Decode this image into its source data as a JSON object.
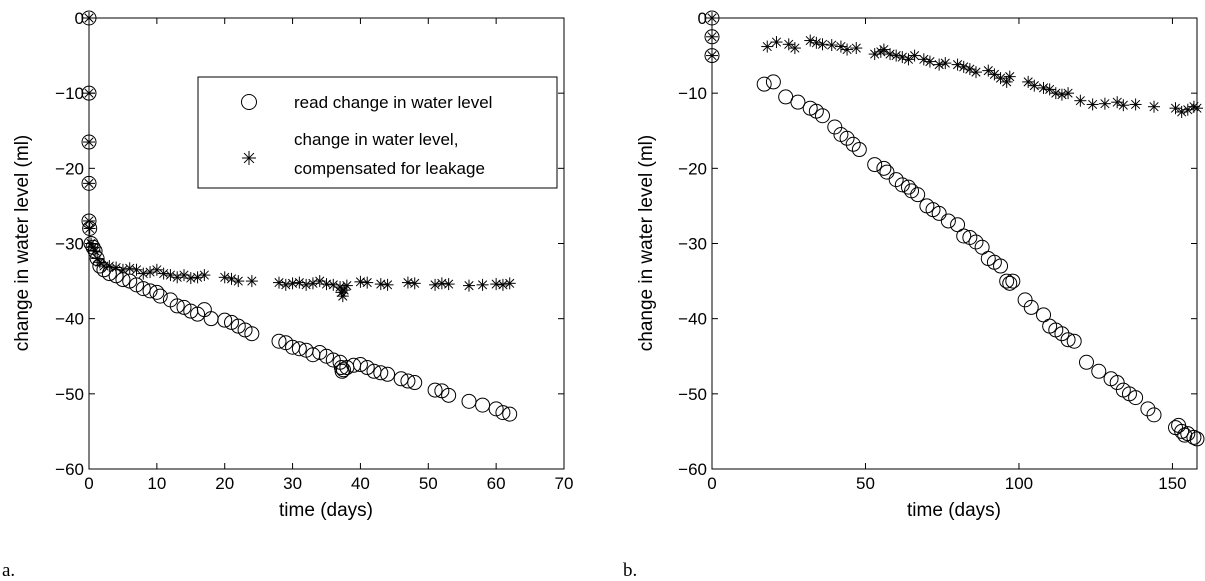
{
  "chart_data": [
    {
      "type": "scatter",
      "panel_label": "a.",
      "title": "",
      "xlabel": "time (days)",
      "ylabel": "change in water level (ml)",
      "xlim": [
        0,
        70
      ],
      "ylim": [
        -60,
        0
      ],
      "xticks": [
        0,
        10,
        20,
        30,
        40,
        50,
        60,
        70
      ],
      "yticks": [
        0,
        -10,
        -20,
        -30,
        -40,
        -50,
        -60
      ],
      "legend": {
        "placement": "top-right",
        "entries": [
          "read change in water level",
          "change in water level, compensated for leakage"
        ]
      },
      "series": [
        {
          "name": "read change in water level",
          "marker": "circle",
          "points": [
            [
              0,
              0
            ],
            [
              0,
              -10
            ],
            [
              0,
              -16.5
            ],
            [
              0,
              -22
            ],
            [
              0,
              -27
            ],
            [
              0.1,
              -28
            ],
            [
              0.3,
              -30
            ],
            [
              0.6,
              -30.5
            ],
            [
              0.9,
              -31
            ],
            [
              1.2,
              -32
            ],
            [
              1.6,
              -33
            ],
            [
              2.2,
              -33.5
            ],
            [
              3,
              -34
            ],
            [
              4,
              -34.3
            ],
            [
              5,
              -34.8
            ],
            [
              6,
              -35
            ],
            [
              7,
              -35.5
            ],
            [
              8,
              -36
            ],
            [
              9,
              -36.3
            ],
            [
              10,
              -36.5
            ],
            [
              10.5,
              -37
            ],
            [
              12,
              -37.5
            ],
            [
              13,
              -38.3
            ],
            [
              14,
              -38.5
            ],
            [
              15,
              -39
            ],
            [
              16,
              -39.4
            ],
            [
              17,
              -38.8
            ],
            [
              18,
              -40
            ],
            [
              20,
              -40.2
            ],
            [
              21,
              -40.5
            ],
            [
              22,
              -41
            ],
            [
              23,
              -41.5
            ],
            [
              24,
              -42
            ],
            [
              28,
              -43
            ],
            [
              29,
              -43.2
            ],
            [
              30,
              -43.8
            ],
            [
              31,
              -44
            ],
            [
              32,
              -44.2
            ],
            [
              33,
              -44.8
            ],
            [
              34,
              -44.5
            ],
            [
              35,
              -45
            ],
            [
              36,
              -45.5
            ],
            [
              37,
              -45.8
            ],
            [
              37.2,
              -46.5
            ],
            [
              37.3,
              -47
            ],
            [
              37.5,
              -46.8
            ],
            [
              38,
              -46.5
            ],
            [
              39,
              -46.2
            ],
            [
              40,
              -46.1
            ],
            [
              41,
              -46.5
            ],
            [
              42,
              -47
            ],
            [
              43,
              -47.2
            ],
            [
              44,
              -47.4
            ],
            [
              46,
              -48
            ],
            [
              47,
              -48.3
            ],
            [
              48,
              -48.5
            ],
            [
              51,
              -49.5
            ],
            [
              52,
              -49.6
            ],
            [
              53,
              -50.2
            ],
            [
              56,
              -51
            ],
            [
              58,
              -51.5
            ],
            [
              60,
              -52
            ],
            [
              61,
              -52.5
            ],
            [
              62,
              -52.7
            ]
          ]
        },
        {
          "name": "change in water level, compensated for leakage",
          "marker": "asterisk",
          "points": [
            [
              0,
              0
            ],
            [
              0,
              -10
            ],
            [
              0,
              -16.5
            ],
            [
              0,
              -22
            ],
            [
              0,
              -27
            ],
            [
              0.1,
              -28
            ],
            [
              0.3,
              -30
            ],
            [
              0.6,
              -30.5
            ],
            [
              0.9,
              -31
            ],
            [
              1.2,
              -32
            ],
            [
              1.6,
              -32.5
            ],
            [
              2.2,
              -33
            ],
            [
              3,
              -33
            ],
            [
              4,
              -33.2
            ],
            [
              5,
              -33.5
            ],
            [
              6,
              -33.3
            ],
            [
              7,
              -33.5
            ],
            [
              8,
              -34
            ],
            [
              9,
              -33.8
            ],
            [
              10,
              -33.5
            ],
            [
              11,
              -34
            ],
            [
              12,
              -34.2
            ],
            [
              13,
              -34.5
            ],
            [
              14,
              -34.2
            ],
            [
              15,
              -34.6
            ],
            [
              16,
              -34.5
            ],
            [
              17,
              -34.2
            ],
            [
              20,
              -34.5
            ],
            [
              21,
              -34.7
            ],
            [
              22,
              -35
            ],
            [
              24,
              -35
            ],
            [
              28,
              -35.2
            ],
            [
              29,
              -35.5
            ],
            [
              30,
              -35.3
            ],
            [
              31,
              -35.2
            ],
            [
              32,
              -35.5
            ],
            [
              33,
              -35.3
            ],
            [
              34,
              -35
            ],
            [
              35,
              -35.4
            ],
            [
              36,
              -35.5
            ],
            [
              37,
              -35.8
            ],
            [
              37.2,
              -36.5
            ],
            [
              37.4,
              -37
            ],
            [
              37.6,
              -36.2
            ],
            [
              38,
              -35.6
            ],
            [
              40,
              -35.1
            ],
            [
              41,
              -35.2
            ],
            [
              43,
              -35.4
            ],
            [
              44,
              -35.5
            ],
            [
              47,
              -35.2
            ],
            [
              48,
              -35.3
            ],
            [
              51,
              -35.5
            ],
            [
              52,
              -35.3
            ],
            [
              53,
              -35.4
            ],
            [
              56,
              -35.6
            ],
            [
              58,
              -35.5
            ],
            [
              60,
              -35.4
            ],
            [
              61,
              -35.5
            ],
            [
              62,
              -35.3
            ]
          ]
        }
      ]
    },
    {
      "type": "scatter",
      "panel_label": "b.",
      "title": "",
      "xlabel": "time (days)",
      "ylabel": "change in water level (ml)",
      "xlim": [
        0,
        158
      ],
      "ylim": [
        -60,
        0
      ],
      "xticks": [
        0,
        50,
        100,
        150
      ],
      "yticks": [
        0,
        -10,
        -20,
        -30,
        -40,
        -50,
        -60
      ],
      "series": [
        {
          "name": "read change in water level",
          "marker": "circle",
          "points": [
            [
              0,
              0
            ],
            [
              0,
              -2.5
            ],
            [
              0,
              -5
            ],
            [
              17,
              -8.8
            ],
            [
              20,
              -8.5
            ],
            [
              24,
              -10.5
            ],
            [
              28,
              -11.2
            ],
            [
              32,
              -12
            ],
            [
              34,
              -12.4
            ],
            [
              36,
              -13
            ],
            [
              40,
              -14.5
            ],
            [
              42,
              -15.5
            ],
            [
              44,
              -16
            ],
            [
              46,
              -16.8
            ],
            [
              48,
              -17.5
            ],
            [
              53,
              -19.5
            ],
            [
              56,
              -20
            ],
            [
              57,
              -20.5
            ],
            [
              60,
              -21.5
            ],
            [
              62,
              -22.2
            ],
            [
              64,
              -22.5
            ],
            [
              65,
              -23
            ],
            [
              67,
              -23.5
            ],
            [
              70,
              -25
            ],
            [
              72,
              -25.5
            ],
            [
              74,
              -26
            ],
            [
              77,
              -27
            ],
            [
              80,
              -27.5
            ],
            [
              82,
              -29
            ],
            [
              84,
              -29.2
            ],
            [
              86,
              -29.8
            ],
            [
              88,
              -30.5
            ],
            [
              90,
              -32
            ],
            [
              92,
              -32.5
            ],
            [
              94,
              -33
            ],
            [
              96,
              -35
            ],
            [
              97,
              -35.3
            ],
            [
              98,
              -35
            ],
            [
              102,
              -37.5
            ],
            [
              104,
              -38.5
            ],
            [
              108,
              -39.5
            ],
            [
              110,
              -41
            ],
            [
              112,
              -41.5
            ],
            [
              114,
              -42
            ],
            [
              116,
              -42.8
            ],
            [
              118,
              -43
            ],
            [
              122,
              -45.8
            ],
            [
              126,
              -47
            ],
            [
              130,
              -48
            ],
            [
              132,
              -48.5
            ],
            [
              134,
              -49.5
            ],
            [
              136,
              -50
            ],
            [
              138,
              -50.5
            ],
            [
              142,
              -52
            ],
            [
              144,
              -52.8
            ],
            [
              151,
              -54.5
            ],
            [
              152,
              -54.2
            ],
            [
              153,
              -55
            ],
            [
              154,
              -55.5
            ],
            [
              155,
              -55.3
            ],
            [
              157,
              -55.8
            ],
            [
              158,
              -56
            ]
          ]
        },
        {
          "name": "change in water level, compensated for leakage",
          "marker": "asterisk",
          "points": [
            [
              0,
              0
            ],
            [
              0,
              -2.5
            ],
            [
              0,
              -5
            ],
            [
              18,
              -3.8
            ],
            [
              21,
              -3.2
            ],
            [
              25,
              -3.5
            ],
            [
              27,
              -4
            ],
            [
              32,
              -3
            ],
            [
              34,
              -3.3
            ],
            [
              36,
              -3.5
            ],
            [
              39,
              -3.6
            ],
            [
              42,
              -3.8
            ],
            [
              44,
              -4.2
            ],
            [
              47,
              -4
            ],
            [
              53,
              -4.8
            ],
            [
              55,
              -4.5
            ],
            [
              56,
              -4.2
            ],
            [
              58,
              -4.8
            ],
            [
              60,
              -5
            ],
            [
              62,
              -5.2
            ],
            [
              64,
              -5.5
            ],
            [
              66,
              -5
            ],
            [
              69,
              -5.5
            ],
            [
              71,
              -5.8
            ],
            [
              74,
              -6.2
            ],
            [
              76,
              -6
            ],
            [
              80,
              -6.2
            ],
            [
              82,
              -6.5
            ],
            [
              84,
              -6.8
            ],
            [
              86,
              -7.2
            ],
            [
              90,
              -7
            ],
            [
              92,
              -7.5
            ],
            [
              94,
              -8
            ],
            [
              96,
              -8.5
            ],
            [
              97,
              -7.8
            ],
            [
              103,
              -8.5
            ],
            [
              105,
              -9
            ],
            [
              108,
              -9.3
            ],
            [
              110,
              -9.5
            ],
            [
              112,
              -10
            ],
            [
              114,
              -10.2
            ],
            [
              116,
              -10
            ],
            [
              120,
              -11
            ],
            [
              124,
              -11.5
            ],
            [
              128,
              -11.4
            ],
            [
              132,
              -11.2
            ],
            [
              134,
              -11.6
            ],
            [
              138,
              -11.5
            ],
            [
              144,
              -11.8
            ],
            [
              151,
              -12
            ],
            [
              153,
              -12.5
            ],
            [
              155,
              -12.2
            ],
            [
              157,
              -11.8
            ],
            [
              158,
              -12
            ]
          ]
        }
      ]
    }
  ]
}
